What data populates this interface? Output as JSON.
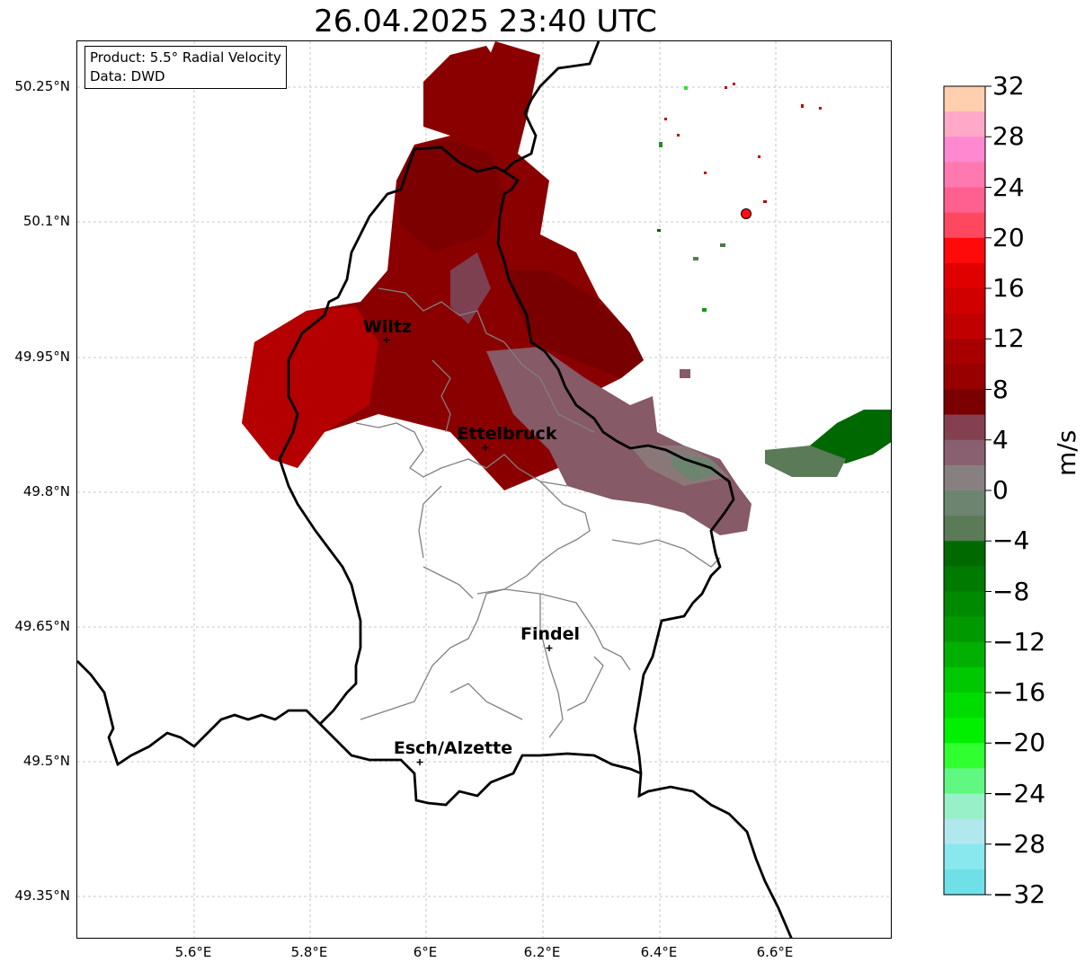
{
  "title": "26.04.2025 23:40 UTC",
  "info": {
    "product": "Product: 5.5° Radial Velocity",
    "data": "Data: DWD"
  },
  "axes": {
    "lat_labels": [
      "50.25°N",
      "50.1°N",
      "49.95°N",
      "49.8°N",
      "49.65°N",
      "49.5°N",
      "49.35°N"
    ],
    "lon_labels": [
      "5.6°E",
      "5.8°E",
      "6°E",
      "6.2°E",
      "6.4°E",
      "6.6°E"
    ]
  },
  "cities": [
    {
      "name": "Wiltz"
    },
    {
      "name": "Ettelbruck"
    },
    {
      "name": "Findel"
    },
    {
      "name": "Esch/Alzette"
    }
  ],
  "radar_site": {
    "icon": "red-dot-icon",
    "color": "#ff1010"
  },
  "colorbar": {
    "unit": "m/s",
    "ticks": [
      "32",
      "28",
      "24",
      "20",
      "16",
      "12",
      "8",
      "4",
      "0",
      "−4",
      "−8",
      "−12",
      "−16",
      "−20",
      "−24",
      "−28",
      "−32"
    ],
    "colors": [
      "#ffcfb0",
      "#ffa8c8",
      "#ff88d0",
      "#ff78b0",
      "#ff6090",
      "#ff4860",
      "#ff0a0a",
      "#e00000",
      "#d00000",
      "#c00000",
      "#a80000",
      "#980000",
      "#7a0000",
      "#844050",
      "#886070",
      "#888080",
      "#6c8470",
      "#5a7a58",
      "#006a00",
      "#007a00",
      "#008a00",
      "#009a00",
      "#00b000",
      "#00c800",
      "#00dc00",
      "#00f000",
      "#30ff30",
      "#60f880",
      "#98f0c8",
      "#b0e8ee",
      "#88e8ee",
      "#70e0e8"
    ],
    "vmin": -32,
    "vmax": 32
  }
}
